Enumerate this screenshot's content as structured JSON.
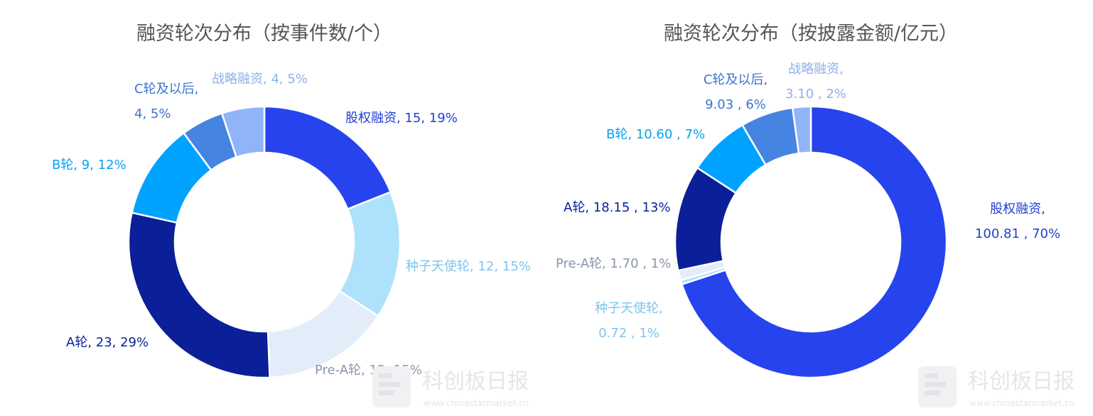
{
  "chart_data": [
    {
      "type": "pie",
      "title": "融资轮次分布（按事件数/个）",
      "slices": [
        {
          "name": "股权融资",
          "value": 15,
          "value_label": "15",
          "percent": "19%",
          "color": "#2643ee",
          "label_lines": [
            "股权融资, 15, 19%"
          ]
        },
        {
          "name": "种子天使轮",
          "value": 12,
          "value_label": "12",
          "percent": "15%",
          "color": "#aee1fb",
          "label_lines": [
            "种子天使轮, 12, 15%"
          ]
        },
        {
          "name": "Pre-A轮",
          "value": 12,
          "value_label": "12",
          "percent": "15%",
          "color": "#e3edf9",
          "label_lines": [
            "Pre-A轮, 12, 15%"
          ]
        },
        {
          "name": "A轮",
          "value": 23,
          "value_label": "23",
          "percent": "29%",
          "color": "#0b1f98",
          "label_lines": [
            "A轮, 23, 29%"
          ]
        },
        {
          "name": "B轮",
          "value": 9,
          "value_label": "9",
          "percent": "12%",
          "color": "#00a2ff",
          "label_lines": [
            "B轮, 9, 12%"
          ]
        },
        {
          "name": "C轮及以后",
          "value": 4,
          "value_label": "4",
          "percent": "5%",
          "color": "#4684e2",
          "label_lines": [
            "C轮及以后,",
            "4, 5%"
          ]
        },
        {
          "name": "战略融资",
          "value": 4,
          "value_label": "4",
          "percent": "5%",
          "color": "#8fb4f8",
          "label_lines": [
            "战略融资, 4, 5%"
          ]
        }
      ]
    },
    {
      "type": "pie",
      "title": "融资轮次分布（按披露金额/亿元）",
      "slices": [
        {
          "name": "股权融资",
          "value": 100.81,
          "value_label": "100.81",
          "percent": "70%",
          "color": "#2643ee",
          "label_lines": [
            "股权融资,",
            "100.81 , 70%"
          ]
        },
        {
          "name": "种子天使轮",
          "value": 0.72,
          "value_label": "0.72",
          "percent": "1%",
          "color": "#aee1fb",
          "label_lines": [
            "种子天使轮,",
            "0.72 , 1%"
          ]
        },
        {
          "name": "Pre-A轮",
          "value": 1.7,
          "value_label": "1.70",
          "percent": "1%",
          "color": "#e3edf9",
          "label_lines": [
            "Pre-A轮, 1.70 , 1%"
          ]
        },
        {
          "name": "A轮",
          "value": 18.15,
          "value_label": "18.15",
          "percent": "13%",
          "color": "#0b1f98",
          "label_lines": [
            "A轮, 18.15 , 13%"
          ]
        },
        {
          "name": "B轮",
          "value": 10.6,
          "value_label": "10.60",
          "percent": "7%",
          "color": "#00a2ff",
          "label_lines": [
            "B轮, 10.60 , 7%"
          ]
        },
        {
          "name": "C轮及以后",
          "value": 9.03,
          "value_label": "9.03",
          "percent": "6%",
          "color": "#4684e2",
          "label_lines": [
            "C轮及以后,",
            "9.03 , 6%"
          ]
        },
        {
          "name": "战略融资",
          "value": 3.1,
          "value_label": "3.10",
          "percent": "2%",
          "color": "#8fb4f8",
          "label_lines": [
            "战略融资,",
            "3.10 , 2%"
          ]
        }
      ]
    }
  ],
  "watermark": {
    "name": "科创板日报",
    "url": "www.chinastarmarket.cn"
  },
  "label_colors": {
    "股权融资": "#1f3fd6",
    "种子天使轮": "#7cc6ee",
    "Pre-A轮": "#8a96a8",
    "A轮": "#0b1f98",
    "B轮": "#0aa0f0",
    "C轮及以后": "#3b74cf",
    "战略融资": "#8fb0e8"
  }
}
